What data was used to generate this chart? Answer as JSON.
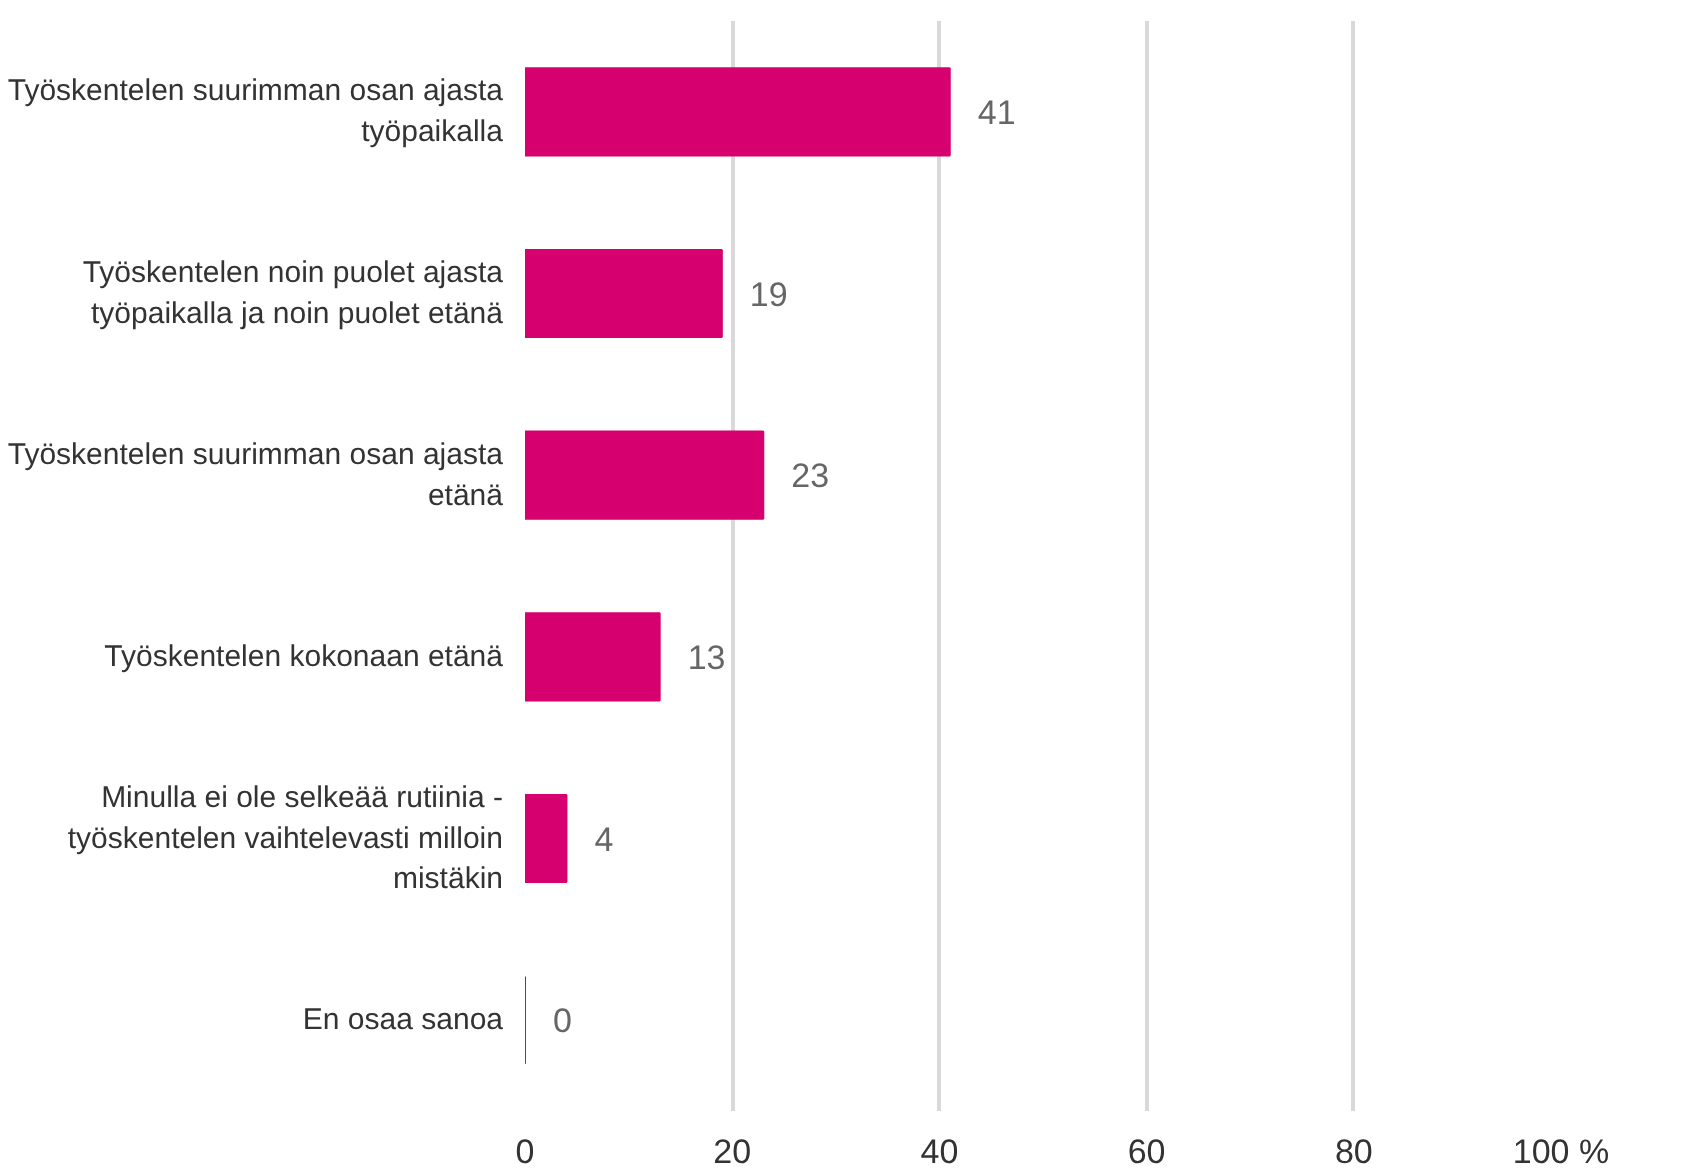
{
  "chart_data": {
    "type": "bar",
    "orientation": "horizontal",
    "categories": [
      "Työskentelen suurimman osan ajasta\ntyöpaikalla",
      "Työskentelen noin puolet ajasta\ntyöpaikalla ja noin puolet etänä",
      "Työskentelen suurimman osan ajasta\netänä",
      "Työskentelen kokonaan etänä",
      "Minulla ei ole selkeää rutiinia -\ntyöskentelen vaihtelevasti milloin\nmistäkin",
      "En osaa sanoa"
    ],
    "values": [
      41,
      19,
      23,
      13,
      4,
      0
    ],
    "color": "#d6006f",
    "xlim": [
      0,
      100
    ],
    "xticks": [
      0,
      20,
      40,
      60,
      80,
      {
        "value": 100,
        "label": "100 %"
      }
    ],
    "grid": "x",
    "data_labels": true
  }
}
